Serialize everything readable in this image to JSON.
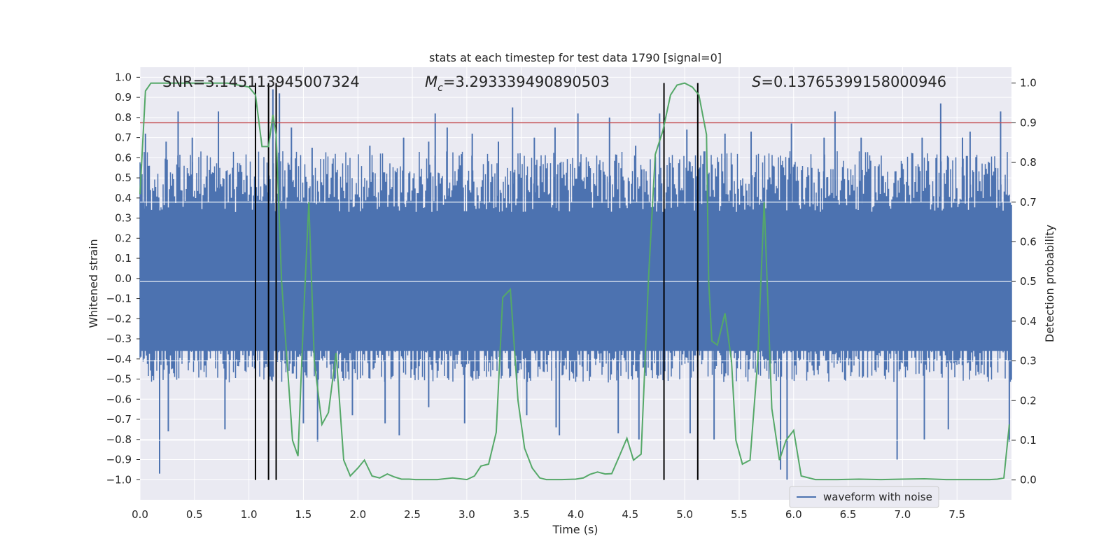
{
  "chart_data": {
    "type": "line",
    "title": "stats at each timestep for test data 1790 [signal=0]",
    "xlabel": "Time (s)",
    "ylabel_left": "Whitened strain",
    "ylabel_right": "Detection probability",
    "xlim": [
      0.0,
      8.0
    ],
    "ylim_left": [
      -1.1,
      1.05
    ],
    "ylim_right": [
      -0.05,
      1.04
    ],
    "x_ticks": [
      "0.0",
      "0.5",
      "1.0",
      "1.5",
      "2.0",
      "2.5",
      "3.0",
      "3.5",
      "4.0",
      "4.5",
      "5.0",
      "5.5",
      "6.0",
      "6.5",
      "7.0",
      "7.5"
    ],
    "y_left_ticks": [
      "1.0",
      "0.9",
      "0.8",
      "0.7",
      "0.6",
      "0.5",
      "0.4",
      "0.3",
      "0.2",
      "0.1",
      "0.0",
      "-0.1",
      "-0.2",
      "-0.3",
      "-0.4",
      "-0.5",
      "-0.6",
      "-0.7",
      "-0.8",
      "-0.9",
      "-1.0"
    ],
    "y_right_ticks": [
      "1.0",
      "0.9",
      "0.8",
      "0.7",
      "0.6",
      "0.5",
      "0.4",
      "0.3",
      "0.2",
      "0.1",
      "0.0"
    ],
    "annotations": {
      "snr": "SNR=3.145113945007324",
      "mc_symbol": "M",
      "mc_subscript": "c",
      "mc_value": "=3.293339490890503",
      "s_symbol": "S",
      "s_value": "=0.13765399158000946"
    },
    "threshold": {
      "axis": "right",
      "value": 0.9,
      "color": "#c44e52"
    },
    "vlines": [
      1.06,
      1.18,
      1.25,
      4.81,
      5.12
    ],
    "legend": [
      {
        "label": "waveform with noise",
        "color": "#4c72b0"
      }
    ],
    "series": [
      {
        "name": "waveform with noise",
        "axis": "left",
        "color": "#4c72b0",
        "band_upper": 0.55,
        "band_lower": -0.45,
        "peaks_up": [
          [
            0.05,
            0.72
          ],
          [
            0.24,
            0.68
          ],
          [
            0.35,
            0.83
          ],
          [
            0.48,
            0.7
          ],
          [
            0.72,
            0.83
          ],
          [
            1.22,
            0.94
          ],
          [
            1.28,
            0.92
          ],
          [
            1.39,
            0.75
          ],
          [
            1.58,
            0.65
          ],
          [
            2.11,
            0.66
          ],
          [
            2.42,
            0.7
          ],
          [
            2.65,
            0.68
          ],
          [
            2.71,
            0.82
          ],
          [
            2.82,
            0.75
          ],
          [
            3.05,
            0.72
          ],
          [
            3.29,
            0.68
          ],
          [
            3.42,
            0.85
          ],
          [
            3.62,
            0.7
          ],
          [
            3.81,
            0.75
          ],
          [
            4.02,
            0.82
          ],
          [
            4.31,
            0.8
          ],
          [
            4.55,
            0.66
          ],
          [
            4.77,
            0.82
          ],
          [
            5.02,
            0.74
          ],
          [
            5.37,
            0.72
          ],
          [
            5.61,
            0.73
          ],
          [
            5.98,
            0.77
          ],
          [
            6.28,
            0.7
          ],
          [
            6.38,
            0.83
          ],
          [
            6.62,
            0.7
          ],
          [
            7.18,
            0.7
          ],
          [
            7.35,
            0.87
          ],
          [
            7.55,
            0.7
          ],
          [
            7.62,
            0.73
          ],
          [
            7.9,
            0.83
          ]
        ],
        "peaks_down": [
          [
            0.18,
            -0.97
          ],
          [
            0.26,
            -0.76
          ],
          [
            0.78,
            -0.75
          ],
          [
            1.25,
            -0.62
          ],
          [
            1.5,
            -0.72
          ],
          [
            1.63,
            -0.81
          ],
          [
            1.95,
            -0.68
          ],
          [
            2.25,
            -0.72
          ],
          [
            2.38,
            -0.78
          ],
          [
            2.65,
            -0.64
          ],
          [
            2.98,
            -0.72
          ],
          [
            3.55,
            -0.68
          ],
          [
            3.82,
            -0.74
          ],
          [
            3.85,
            -0.78
          ],
          [
            4.39,
            -0.77
          ],
          [
            4.58,
            -0.8
          ],
          [
            5.05,
            -0.77
          ],
          [
            5.27,
            -0.8
          ],
          [
            5.88,
            -0.95
          ],
          [
            5.94,
            -1.0
          ],
          [
            6.95,
            -0.9
          ],
          [
            7.2,
            -0.8
          ],
          [
            7.42,
            -0.75
          ],
          [
            7.98,
            -0.81
          ]
        ]
      },
      {
        "name": "detection probability",
        "axis": "right",
        "color": "#55a868",
        "x": [
          0.0,
          0.05,
          0.1,
          0.2,
          0.4,
          0.6,
          0.8,
          0.9,
          1.0,
          1.06,
          1.12,
          1.18,
          1.22,
          1.25,
          1.3,
          1.35,
          1.4,
          1.45,
          1.5,
          1.55,
          1.6,
          1.67,
          1.73,
          1.8,
          1.87,
          1.93,
          2.0,
          2.06,
          2.13,
          2.2,
          2.27,
          2.33,
          2.4,
          2.47,
          2.53,
          2.6,
          2.73,
          2.87,
          3.0,
          3.07,
          3.13,
          3.2,
          3.27,
          3.33,
          3.4,
          3.47,
          3.53,
          3.6,
          3.67,
          3.73,
          3.87,
          4.0,
          4.07,
          4.13,
          4.2,
          4.27,
          4.33,
          4.4,
          4.47,
          4.53,
          4.6,
          4.67,
          4.73,
          4.8,
          4.87,
          4.93,
          5.0,
          5.07,
          5.13,
          5.2,
          5.22,
          5.25,
          5.3,
          5.37,
          5.43,
          5.47,
          5.53,
          5.6,
          5.67,
          5.73,
          5.8,
          5.87,
          5.93,
          6.0,
          6.07,
          6.2,
          6.4,
          6.6,
          6.8,
          7.0,
          7.2,
          7.4,
          7.6,
          7.8,
          7.87,
          7.93,
          7.98
        ],
        "y": [
          0.72,
          0.98,
          1.0,
          1.0,
          1.0,
          1.0,
          1.0,
          0.995,
          0.99,
          0.97,
          0.84,
          0.84,
          0.92,
          0.87,
          0.5,
          0.3,
          0.1,
          0.06,
          0.4,
          0.7,
          0.3,
          0.14,
          0.17,
          0.32,
          0.05,
          0.01,
          0.03,
          0.05,
          0.01,
          0.005,
          0.015,
          0.008,
          0.002,
          0.002,
          0.001,
          0.001,
          0.001,
          0.005,
          0.001,
          0.01,
          0.035,
          0.04,
          0.12,
          0.46,
          0.48,
          0.2,
          0.08,
          0.03,
          0.005,
          0.001,
          0.001,
          0.002,
          0.005,
          0.014,
          0.02,
          0.015,
          0.016,
          0.06,
          0.105,
          0.05,
          0.065,
          0.52,
          0.82,
          0.88,
          0.97,
          0.995,
          1.0,
          0.99,
          0.97,
          0.87,
          0.5,
          0.35,
          0.34,
          0.42,
          0.3,
          0.1,
          0.04,
          0.05,
          0.3,
          0.7,
          0.18,
          0.05,
          0.1,
          0.125,
          0.01,
          0.001,
          0.001,
          0.002,
          0.001,
          0.002,
          0.003,
          0.001,
          0.001,
          0.001,
          0.002,
          0.005,
          0.14
        ]
      }
    ]
  }
}
